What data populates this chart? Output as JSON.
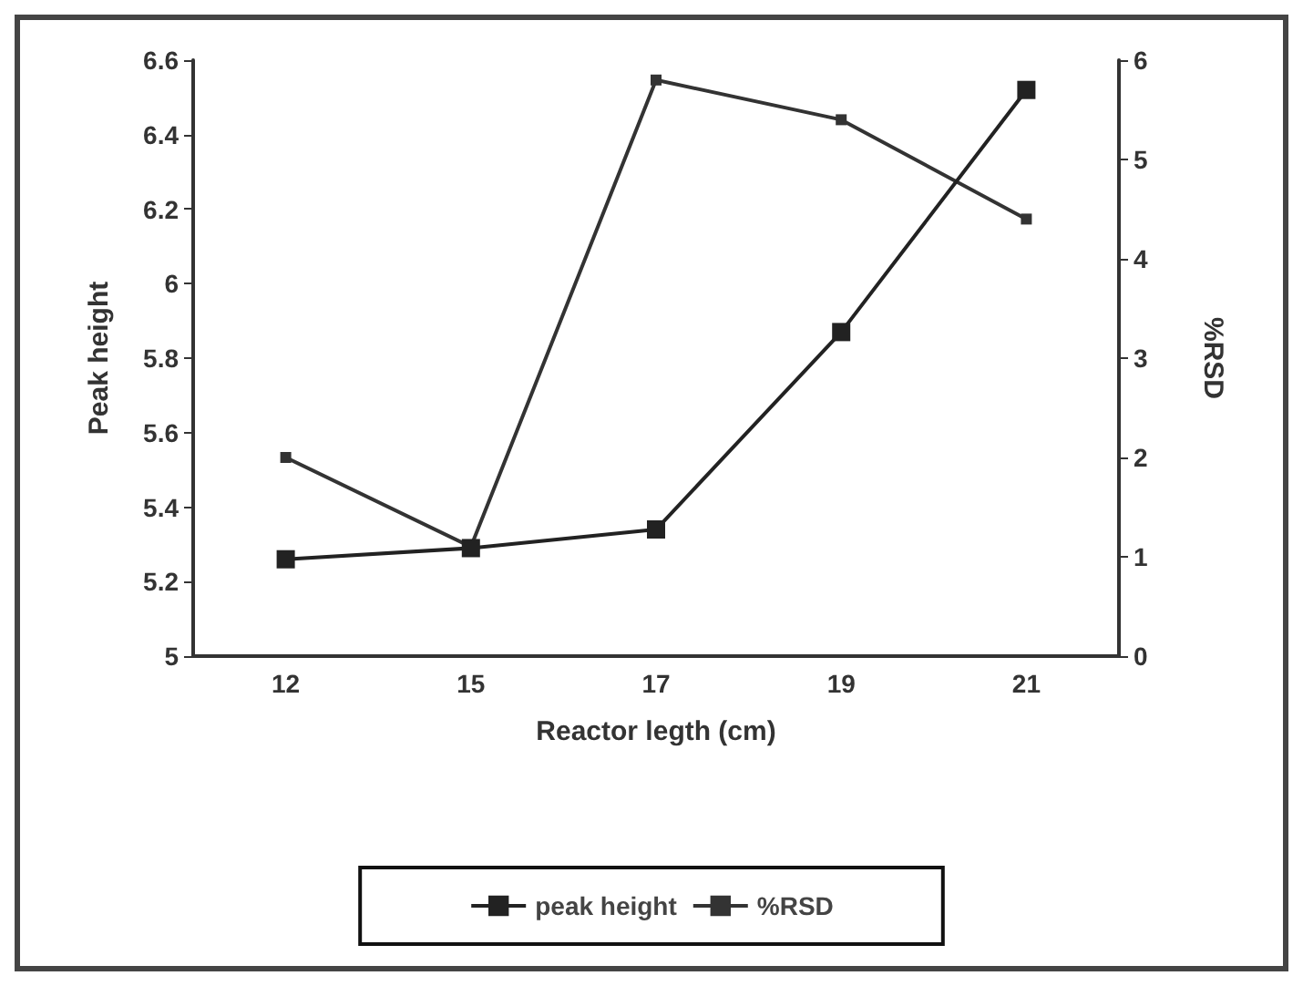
{
  "chart_data": {
    "type": "line",
    "xlabel": "Reactor legth (cm)",
    "ylabel": "Peak height",
    "y2label": "%RSD",
    "categories": [
      "12",
      "15",
      "17",
      "19",
      "21"
    ],
    "series": [
      {
        "name": "peak height",
        "color": "#222222",
        "values": [
          5.26,
          5.29,
          5.34,
          5.87,
          6.52
        ]
      },
      {
        "name": "%RSD",
        "color": "#333333",
        "axis": "y2",
        "values": [
          2.0,
          1.1,
          5.8,
          5.4,
          4.4
        ]
      }
    ],
    "ylim": [
      5,
      6.6
    ],
    "yticks": [
      5,
      5.2,
      5.4,
      5.6,
      5.8,
      6,
      6.2,
      6.4,
      6.6
    ],
    "y2lim": [
      0,
      6
    ],
    "y2ticks": [
      0,
      1,
      2,
      3,
      4,
      5,
      6
    ],
    "grid": false,
    "legend": "bottom",
    "marker": "square",
    "line_style": "solid"
  }
}
